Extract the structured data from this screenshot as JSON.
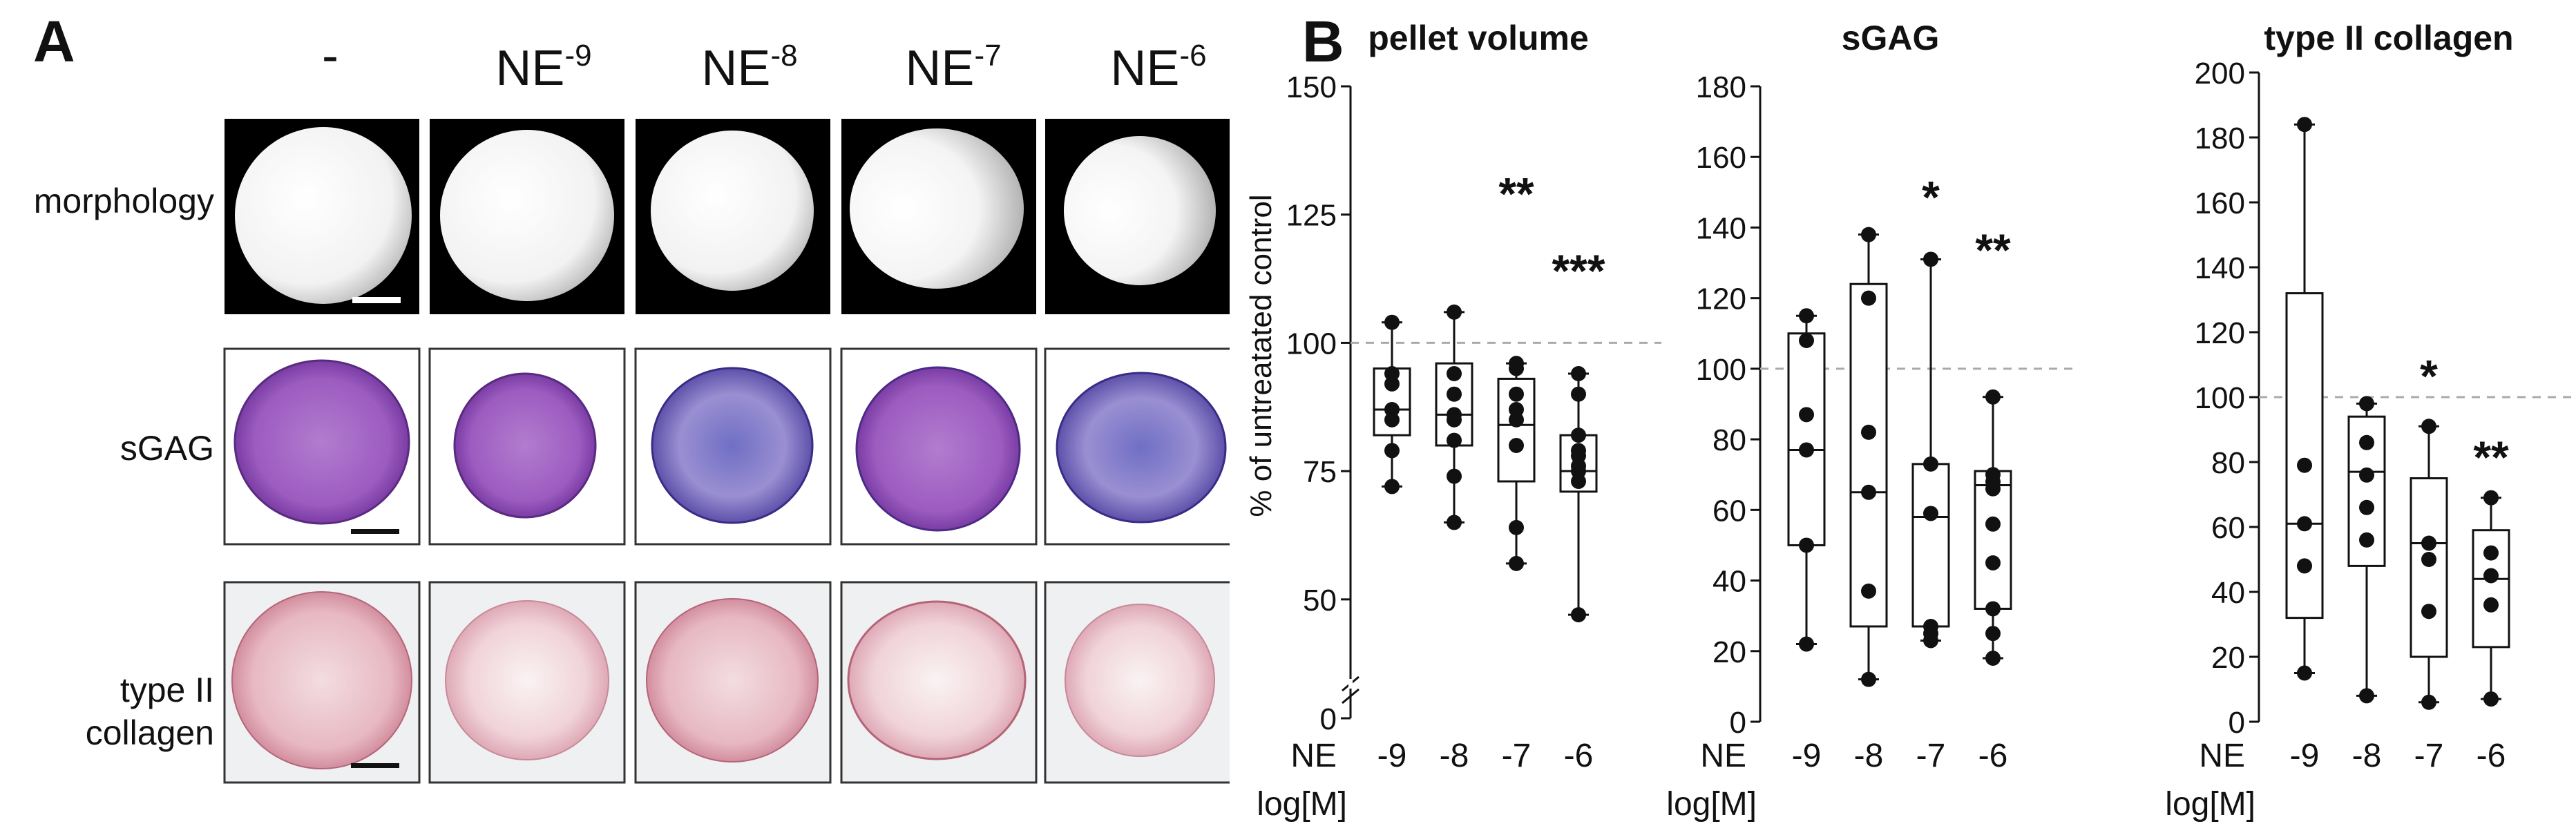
{
  "panel_a": {
    "letter": "A",
    "columns": [
      "-",
      "NE",
      "NE",
      "NE",
      "NE"
    ],
    "exponents": [
      "",
      "-9",
      "-8",
      "-7",
      "-6"
    ],
    "rows": [
      "morphology",
      "sGAG",
      "type II",
      "collagen"
    ]
  },
  "panel_b": {
    "letter": "B",
    "x_prefix": "NE",
    "x_unit": "log[M]"
  },
  "chart_data": [
    {
      "type": "box",
      "title": "pellet volume",
      "ylabel": "% of untreatated control",
      "yticks": [
        "150",
        "125",
        "100",
        "75",
        "50",
        "0"
      ],
      "ylim": [
        45,
        150
      ],
      "axis_break": true,
      "reference_line": 100,
      "categories": [
        "-9",
        "-8",
        "-7",
        "-6"
      ],
      "boxes": [
        {
          "min": 72,
          "q1": 82,
          "median": 87,
          "q3": 95,
          "max": 104
        },
        {
          "min": 65,
          "q1": 80,
          "median": 86,
          "q3": 96,
          "max": 106
        },
        {
          "min": 57,
          "q1": 73,
          "median": 84,
          "q3": 93,
          "max": 96
        },
        {
          "min": 47,
          "q1": 71,
          "median": 75,
          "q3": 82,
          "max": 94
        }
      ],
      "points": [
        [
          104,
          94,
          92,
          87,
          85,
          79,
          72
        ],
        [
          106,
          94,
          90,
          86,
          85,
          81,
          74,
          65
        ],
        [
          96,
          95,
          90,
          87,
          85,
          80,
          64,
          57
        ],
        [
          94,
          90,
          82,
          79,
          78,
          76,
          75,
          73,
          47
        ]
      ],
      "annotations": [
        {
          "label": "**",
          "category": "-7",
          "y": 130
        },
        {
          "label": "***",
          "category": "-6",
          "y": 115
        }
      ]
    },
    {
      "type": "box",
      "title": "sGAG",
      "yticks": [
        "0",
        "20",
        "40",
        "60",
        "80",
        "100",
        "120",
        "140",
        "160",
        "180"
      ],
      "ylim": [
        0,
        180
      ],
      "reference_line": 100,
      "categories": [
        "-9",
        "-8",
        "-7",
        "-6"
      ],
      "boxes": [
        {
          "min": 22,
          "q1": 50,
          "median": 77,
          "q3": 110,
          "max": 115
        },
        {
          "min": 12,
          "q1": 27,
          "median": 65,
          "q3": 124,
          "max": 138
        },
        {
          "min": 23,
          "q1": 27,
          "median": 58,
          "q3": 73,
          "max": 131
        },
        {
          "min": 18,
          "q1": 32,
          "median": 67,
          "q3": 71,
          "max": 92
        }
      ],
      "points": [
        [
          115,
          108,
          87,
          77,
          50,
          22
        ],
        [
          138,
          120,
          82,
          65,
          37,
          12
        ],
        [
          131,
          73,
          59,
          27,
          25,
          23
        ],
        [
          92,
          70,
          68,
          66,
          56,
          45,
          32,
          25,
          18
        ]
      ],
      "annotations": [
        {
          "label": "*",
          "category": "-7",
          "y": 150
        },
        {
          "label": "**",
          "category": "-6",
          "y": 135
        }
      ]
    },
    {
      "type": "box",
      "title": "type II collagen",
      "yticks": [
        "0",
        "20",
        "40",
        "60",
        "80",
        "100",
        "120",
        "140",
        "160",
        "180",
        "200"
      ],
      "ylim": [
        0,
        200
      ],
      "reference_line": 100,
      "categories": [
        "-9",
        "-8",
        "-7",
        "-6"
      ],
      "boxes": [
        {
          "min": 15,
          "q1": 32,
          "median": 61,
          "q3": 132,
          "max": 184
        },
        {
          "min": 8,
          "q1": 48,
          "median": 77,
          "q3": 94,
          "max": 98
        },
        {
          "min": 6,
          "q1": 20,
          "median": 55,
          "q3": 75,
          "max": 91
        },
        {
          "min": 7,
          "q1": 23,
          "median": 44,
          "q3": 59,
          "max": 69
        }
      ],
      "points": [
        [
          184,
          79,
          61,
          48,
          15
        ],
        [
          98,
          86,
          76,
          66,
          56,
          8
        ],
        [
          91,
          55,
          50,
          34,
          6
        ],
        [
          69,
          52,
          45,
          36,
          7
        ]
      ],
      "annotations": [
        {
          "label": "*",
          "category": "-7",
          "y": 108
        },
        {
          "label": "**",
          "category": "-6",
          "y": 83
        }
      ]
    }
  ]
}
